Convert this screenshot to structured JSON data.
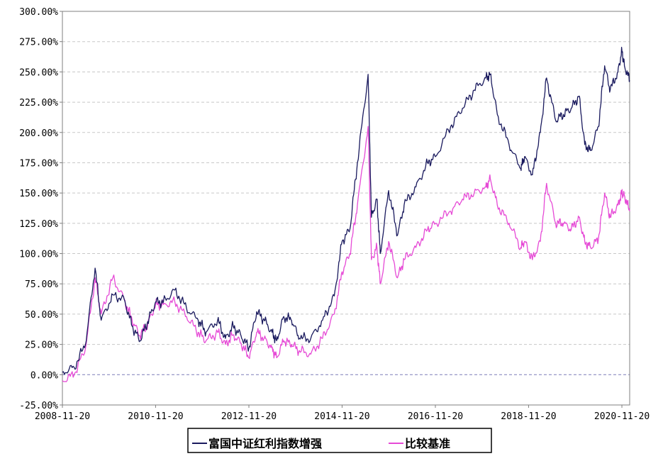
{
  "chart_data": {
    "type": "line",
    "x": [
      "2008-11-20",
      "2009-02-20",
      "2009-05-20",
      "2009-08-03",
      "2009-09-20",
      "2009-12-20",
      "2010-03-20",
      "2010-05-20",
      "2010-07-20",
      "2010-09-20",
      "2010-11-20",
      "2011-01-20",
      "2011-04-20",
      "2011-07-20",
      "2011-10-20",
      "2011-12-20",
      "2012-03-20",
      "2012-05-20",
      "2012-07-20",
      "2012-09-20",
      "2012-11-20",
      "2013-01-20",
      "2013-03-20",
      "2013-05-20",
      "2013-06-25",
      "2013-08-20",
      "2013-10-20",
      "2013-12-20",
      "2014-03-20",
      "2014-06-20",
      "2014-09-20",
      "2014-11-20",
      "2015-01-20",
      "2015-03-20",
      "2015-06-12",
      "2015-07-08",
      "2015-08-20",
      "2015-09-15",
      "2015-11-20",
      "2016-01-28",
      "2016-03-20",
      "2016-06-20",
      "2016-09-20",
      "2016-11-20",
      "2017-03-20",
      "2017-06-20",
      "2017-09-20",
      "2017-12-20",
      "2018-01-24",
      "2018-03-20",
      "2018-06-20",
      "2018-09-20",
      "2018-10-19",
      "2018-12-20",
      "2019-02-20",
      "2019-04-10",
      "2019-06-20",
      "2019-08-20",
      "2019-10-20",
      "2019-12-20",
      "2020-02-03",
      "2020-03-20",
      "2020-05-20",
      "2020-07-08",
      "2020-08-20",
      "2020-10-20",
      "2020-11-20",
      "2020-12-10",
      "2021-01-20"
    ],
    "series": [
      {
        "name": "富国中证红利指数增强",
        "color": "#1a1a5e",
        "values": [
          2,
          6,
          25,
          88,
          45,
          66,
          62,
          40,
          28,
          44,
          60,
          60,
          70,
          55,
          45,
          35,
          45,
          30,
          40,
          32,
          22,
          52,
          45,
          35,
          28,
          48,
          45,
          30,
          30,
          45,
          65,
          110,
          120,
          175,
          248,
          130,
          145,
          100,
          152,
          115,
          140,
          155,
          175,
          180,
          205,
          220,
          235,
          245,
          248,
          215,
          190,
          170,
          180,
          165,
          200,
          245,
          210,
          215,
          220,
          230,
          190,
          185,
          205,
          255,
          235,
          250,
          268,
          255,
          243
        ]
      },
      {
        "name": "比较基准",
        "color": "#e64ad6",
        "values": [
          -5,
          0,
          22,
          80,
          50,
          80,
          62,
          45,
          32,
          42,
          58,
          58,
          60,
          48,
          35,
          28,
          35,
          25,
          33,
          26,
          14,
          35,
          30,
          22,
          14,
          28,
          25,
          20,
          17,
          30,
          50,
          85,
          100,
          140,
          205,
          95,
          105,
          75,
          110,
          80,
          95,
          105,
          120,
          125,
          135,
          145,
          150,
          155,
          162,
          140,
          125,
          105,
          110,
          95,
          110,
          158,
          125,
          125,
          120,
          130,
          110,
          105,
          112,
          150,
          130,
          140,
          150,
          148,
          135
        ]
      }
    ],
    "ylim": [
      -25,
      300
    ],
    "yticks": [
      "-25.00%",
      "0.00%",
      "25.00%",
      "50.00%",
      "75.00%",
      "100.00%",
      "125.00%",
      "150.00%",
      "175.00%",
      "200.00%",
      "225.00%",
      "250.00%",
      "275.00%",
      "300.00%"
    ],
    "xticks": [
      "2008-11-20",
      "2010-11-20",
      "2012-11-20",
      "2014-11-20",
      "2016-11-20",
      "2018-11-20",
      "2020-11-20"
    ],
    "xlim": [
      "2008-11-20",
      "2021-01-20"
    ],
    "grid": true,
    "legend_position": "bottom-center"
  }
}
